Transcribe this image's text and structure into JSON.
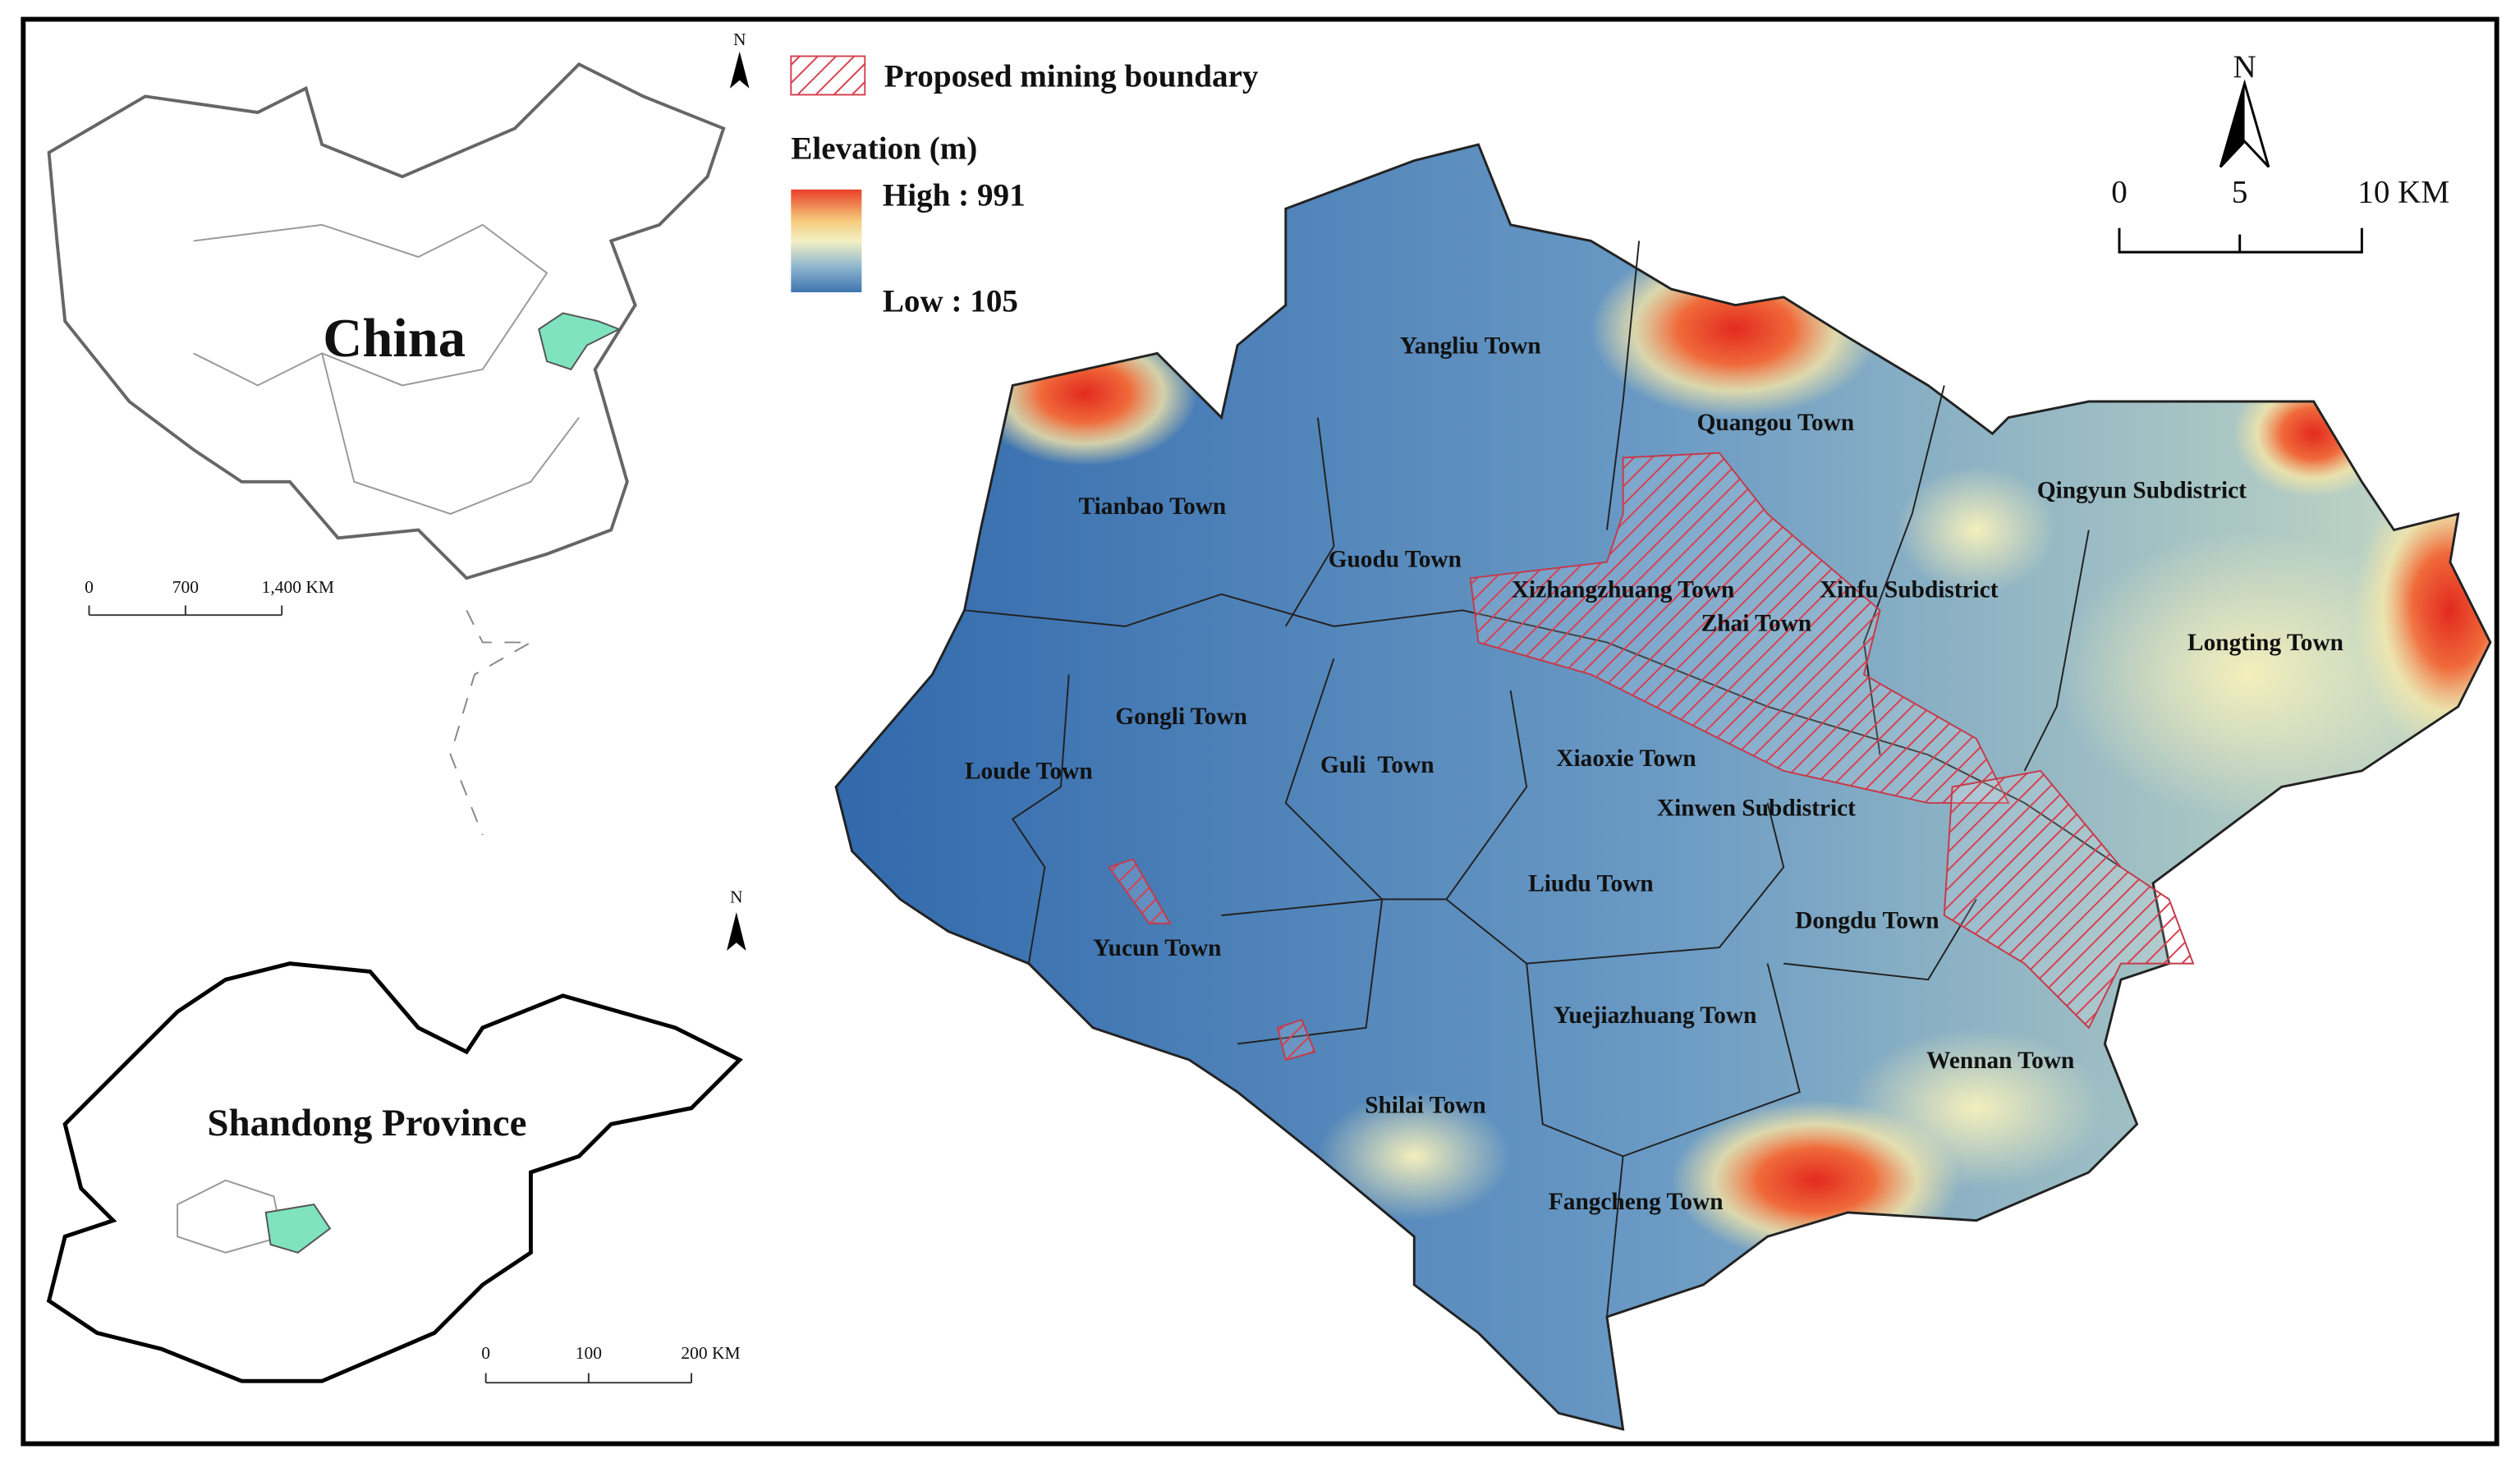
{
  "legend": {
    "mining_boundary": "Proposed mining boundary",
    "elevation_title": "Elevation (m)",
    "high": "High : 991",
    "low": "Low : 105"
  },
  "main_map": {
    "north": "N",
    "scale": [
      "0",
      "5",
      "10 KM"
    ],
    "towns": [
      "Yangliu Town",
      "Quangou Town",
      "Tianbao Town",
      "Qingyun Subdistrict",
      "Guodu Town",
      "Xizhangzhuang Town",
      "Xinfu Subdistrict",
      "Zhai Town",
      "Longting Town",
      "Gongli Town",
      "Loude Town",
      "Guli  Town",
      "Xiaoxie Town",
      "Xinwen Subdistrict",
      "Liudu Town",
      "Dongdu Town",
      "Yucun Town",
      "Yuejiazhuang Town",
      "Wennan Town",
      "Shilai Town",
      "Fangcheng Town"
    ]
  },
  "china_inset": {
    "north": "N",
    "label": "China",
    "scale": [
      "0",
      "700",
      "1,400 KM"
    ]
  },
  "shandong_inset": {
    "north": "N",
    "label": "Shandong Province",
    "scale": [
      "0",
      "100",
      "200 KM"
    ]
  }
}
